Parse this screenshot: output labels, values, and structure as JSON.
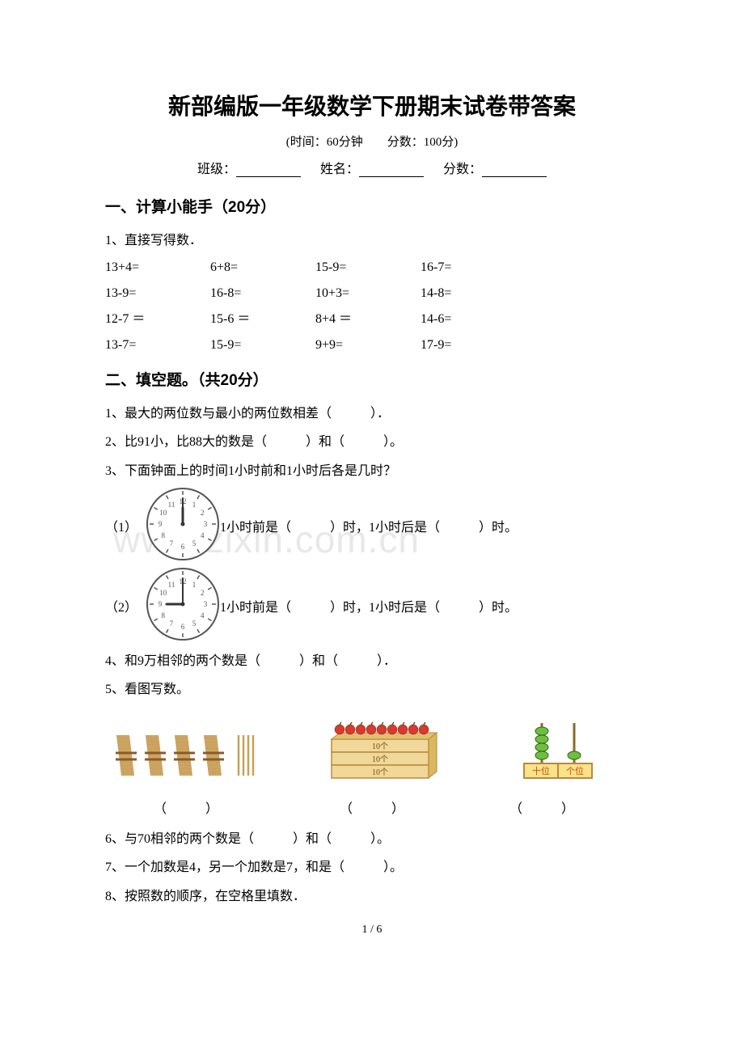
{
  "title": "新部编版一年级数学下册期末试卷带答案",
  "subtitle": "(时间：60分钟　　分数：100分)",
  "info": {
    "class": "班级：",
    "name": "姓名：",
    "score": "分数："
  },
  "watermark": "www.zixin.com.cn",
  "section1": {
    "head": "一、计算小能手（20分）",
    "q1": "1、直接写得数．",
    "rows": [
      [
        "13+4=",
        "6+8=",
        "15-9=",
        "16-7="
      ],
      [
        "13-9=",
        "16-8=",
        "10+3=",
        "14-8="
      ],
      [
        "12-7 ＝",
        "15-6 ＝",
        "8+4 ＝",
        "14-6="
      ],
      [
        "13-7=",
        "15-9=",
        "9+9=",
        "17-9="
      ]
    ]
  },
  "section2": {
    "head": "二、填空题。（共20分）",
    "q1": "1、最大的两位数与最小的两位数相差（　　　）．",
    "q2": "2、比91小，比88大的数是（　　　）和（　　　）。",
    "q3": "3、下面钟面上的时间1小时前和1小时后各是几时？",
    "q3a_pre": "（1）",
    "q3a": "1小时前是（　　　）时，1小时后是（　　　）时。",
    "q3b_pre": "（2）",
    "q3b": "1小时前是（　　　）时，1小时后是（　　　）时。",
    "q4": "4、和9万相邻的两个数是（　　　）和（　　　）．",
    "q5": "5、看图写数。",
    "q5_labels": [
      "（　　　）",
      "（　　　）",
      "（　　　）"
    ],
    "q6": "6、与70相邻的两个数是（　　　）和（　　　）。",
    "q7": "7、一个加数是4，另一个加数是7，和是（　　　）。",
    "q8": "8、按照数的顺序，在空格里填数．"
  },
  "clock1": {
    "hour": 12,
    "minute": 0,
    "numbers": [
      12,
      1,
      2,
      3,
      4,
      5,
      6,
      7,
      8,
      9,
      10,
      11
    ]
  },
  "clock2": {
    "hour": 9,
    "minute": 0,
    "numbers": [
      12,
      1,
      2,
      3,
      4,
      5,
      6,
      7,
      8,
      9,
      10,
      11
    ]
  },
  "fig_box": {
    "labels": [
      "10个",
      "10个",
      "10个"
    ]
  },
  "abacus": {
    "left": "十位",
    "right": "个位"
  },
  "pagenum": "1 / 6"
}
